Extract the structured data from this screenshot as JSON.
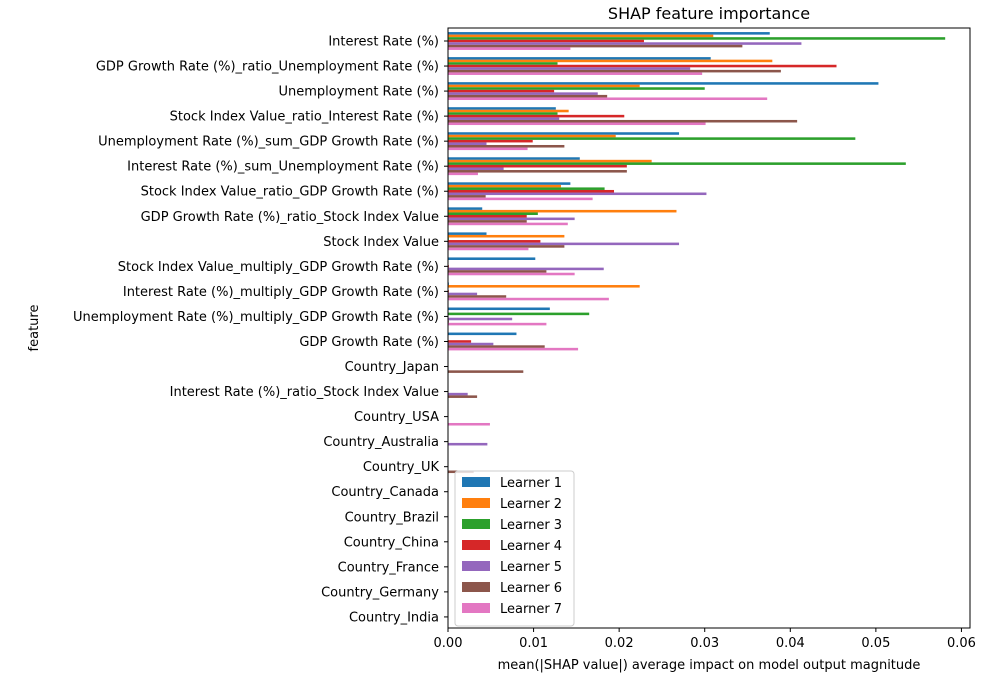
{
  "chart_data": {
    "type": "bar",
    "orientation": "horizontal",
    "title": "SHAP feature importance",
    "xlabel": "mean(|SHAP value|) average impact on model output magnitude",
    "ylabel": "feature",
    "xlim": [
      0,
      0.061
    ],
    "xticks": [
      "0.00",
      "0.01",
      "0.02",
      "0.03",
      "0.04",
      "0.05",
      "0.06"
    ],
    "xtick_values": [
      0,
      0.01,
      0.02,
      0.03,
      0.04,
      0.05,
      0.06
    ],
    "grid": false,
    "legend_position": "lower-center",
    "categories": [
      "Interest Rate (%)",
      "GDP Growth Rate (%)_ratio_Unemployment Rate (%)",
      "Unemployment Rate (%)",
      "Stock Index Value_ratio_Interest Rate (%)",
      "Unemployment Rate (%)_sum_GDP Growth Rate (%)",
      "Interest Rate (%)_sum_Unemployment Rate (%)",
      "Stock Index Value_ratio_GDP Growth Rate (%)",
      "GDP Growth Rate (%)_ratio_Stock Index Value",
      "Stock Index Value",
      "Stock Index Value_multiply_GDP Growth Rate (%)",
      "Interest Rate (%)_multiply_GDP Growth Rate (%)",
      "Unemployment Rate (%)_multiply_GDP Growth Rate (%)",
      "GDP Growth Rate (%)",
      "Country_Japan",
      "Interest Rate (%)_ratio_Stock Index Value",
      "Country_USA",
      "Country_Australia",
      "Country_UK",
      "Country_Canada",
      "Country_Brazil",
      "Country_China",
      "Country_France",
      "Country_Germany",
      "Country_India"
    ],
    "series": [
      {
        "name": "Learner 1",
        "color": "#1f77b4",
        "values": [
          0.0376,
          0.0307,
          0.0503,
          0.0126,
          0.027,
          0.0154,
          0.0143,
          0.004,
          0.0045,
          0.0102,
          0.0001,
          0.0119,
          0.008,
          0,
          0,
          0,
          0,
          0,
          0,
          0,
          0,
          0,
          0,
          0
        ]
      },
      {
        "name": "Learner 2",
        "color": "#ff7f0e",
        "values": [
          0.031,
          0.0379,
          0.0224,
          0.0141,
          0.0196,
          0.0238,
          0.0132,
          0.0267,
          0.0136,
          0,
          0.0224,
          0,
          0,
          0,
          0,
          0,
          0,
          0,
          0,
          0,
          0,
          0,
          0,
          0
        ]
      },
      {
        "name": "Learner 3",
        "color": "#2ca02c",
        "values": [
          0.0581,
          0.0128,
          0.03,
          0.0128,
          0.0476,
          0.0535,
          0.0183,
          0.0105,
          0.0001,
          0,
          0,
          0.0165,
          0,
          0,
          0,
          0,
          0,
          0,
          0,
          0,
          0,
          0,
          0,
          0
        ]
      },
      {
        "name": "Learner 4",
        "color": "#d62728",
        "values": [
          0.0229,
          0.0454,
          0.0124,
          0.0206,
          0.0099,
          0.0209,
          0.0194,
          0.0092,
          0.0108,
          0.0001,
          0.0001,
          0,
          0.0027,
          0,
          0,
          0,
          0,
          0,
          0,
          0,
          0,
          0,
          0,
          0
        ]
      },
      {
        "name": "Learner 5",
        "color": "#9467bd",
        "values": [
          0.0413,
          0.0283,
          0.0175,
          0.013,
          0.0045,
          0.0065,
          0.0302,
          0.0148,
          0.027,
          0.0182,
          0.0034,
          0.0075,
          0.0053,
          0,
          0.0023,
          0,
          0.0046,
          0,
          0,
          0,
          0,
          0,
          0,
          0
        ]
      },
      {
        "name": "Learner 6",
        "color": "#8c564b",
        "values": [
          0.0344,
          0.0389,
          0.0186,
          0.0408,
          0.0136,
          0.0209,
          0.0044,
          0.0092,
          0.0136,
          0.0115,
          0.0068,
          0.0001,
          0.0113,
          0.0088,
          0.0034,
          0,
          0,
          0.003,
          0,
          0,
          0,
          0,
          0,
          0
        ]
      },
      {
        "name": "Learner 7",
        "color": "#e377c2",
        "values": [
          0.0143,
          0.0297,
          0.0373,
          0.0301,
          0.0093,
          0.0035,
          0.0169,
          0.014,
          0.0094,
          0.0148,
          0.0188,
          0.0115,
          0.0152,
          0,
          0,
          0.0049,
          0,
          0,
          0,
          0,
          0,
          0,
          0,
          0
        ]
      }
    ]
  }
}
